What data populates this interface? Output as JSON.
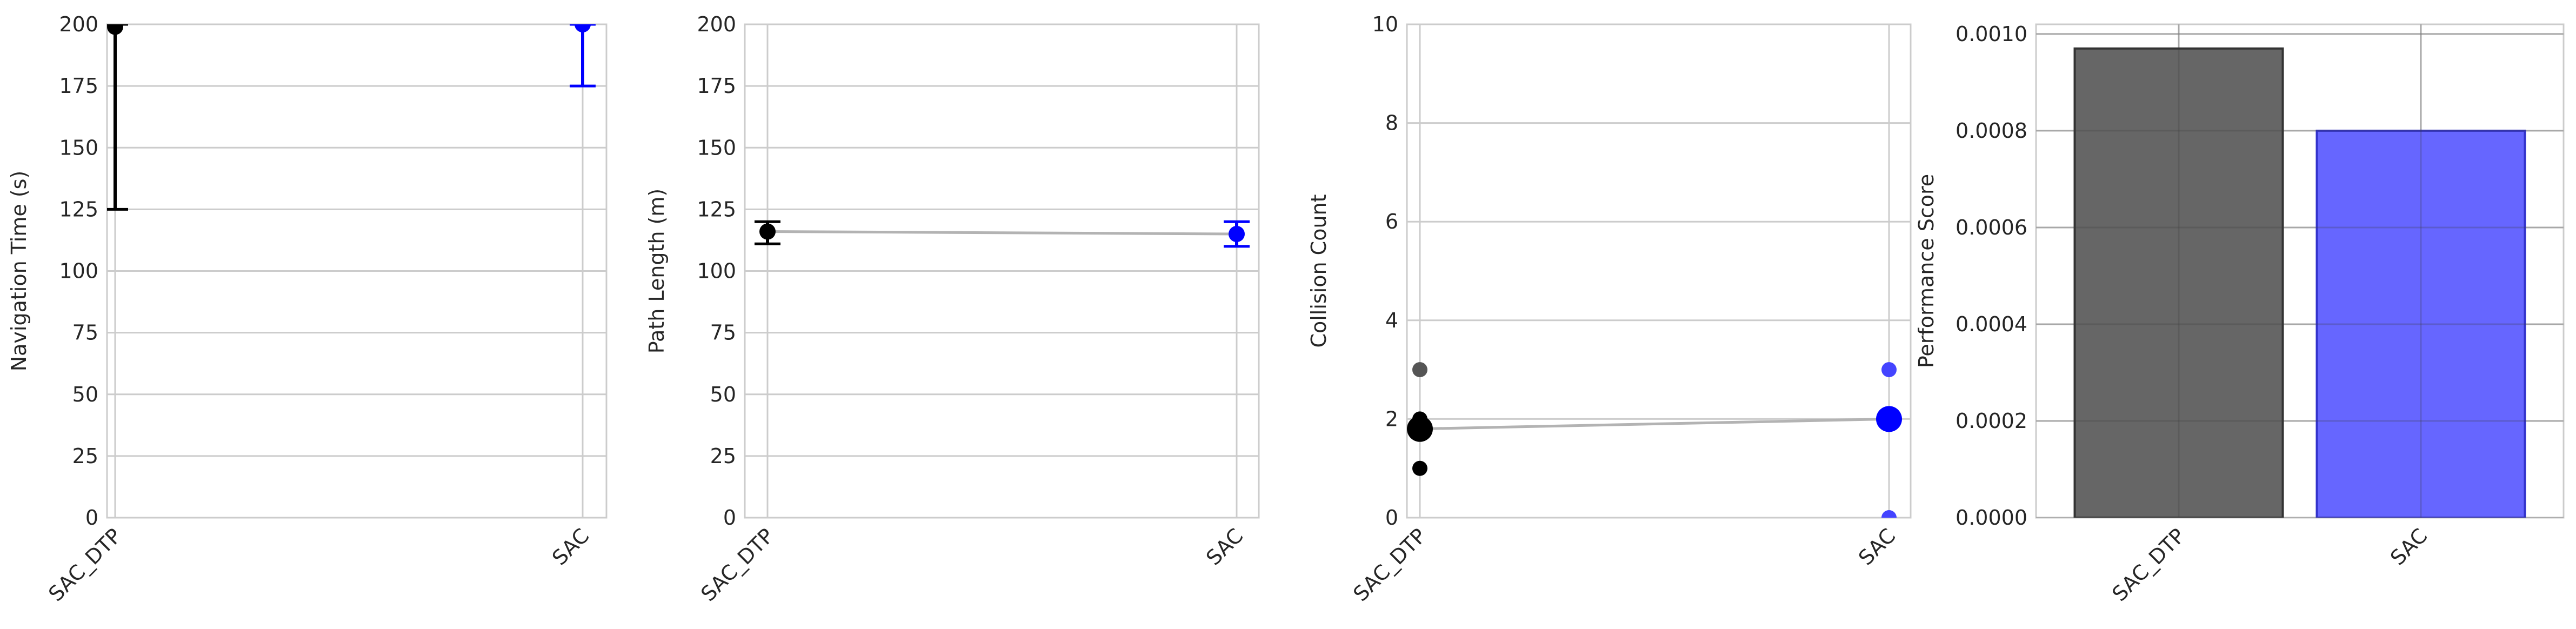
{
  "chart_data": [
    {
      "type": "errorbar",
      "ylabel": "Navigation Time (s)",
      "categories": [
        "SAC_DTP",
        "SAC"
      ],
      "ylim": [
        0,
        200
      ],
      "yticks": [
        0,
        25,
        50,
        75,
        100,
        125,
        150,
        175,
        200
      ],
      "grid": true,
      "series": [
        {
          "category": "SAC_DTP",
          "mean": 199,
          "err_low": 125,
          "err_high": 200,
          "color": "#000000"
        },
        {
          "category": "SAC",
          "mean": 200,
          "err_low": 175,
          "err_high": 200,
          "color": "#0000ff"
        }
      ],
      "connector": false
    },
    {
      "type": "errorbar",
      "ylabel": "Path Length (m)",
      "categories": [
        "SAC_DTP",
        "SAC"
      ],
      "ylim": [
        0,
        200
      ],
      "yticks": [
        0,
        25,
        50,
        75,
        100,
        125,
        150,
        175,
        200
      ],
      "grid": true,
      "series": [
        {
          "category": "SAC_DTP",
          "mean": 116,
          "err_low": 111,
          "err_high": 120,
          "color": "#000000"
        },
        {
          "category": "SAC",
          "mean": 115,
          "err_low": 110,
          "err_high": 120,
          "color": "#0000ff"
        }
      ],
      "connector": true,
      "connector_color": "#b3b3b3"
    },
    {
      "type": "scatter",
      "ylabel": "Collision Count",
      "categories": [
        "SAC_DTP",
        "SAC"
      ],
      "ylim": [
        0,
        10
      ],
      "yticks": [
        0,
        2,
        4,
        6,
        8,
        10
      ],
      "grid": true,
      "points": [
        {
          "category": "SAC_DTP",
          "y": 3,
          "color": "#555555"
        },
        {
          "category": "SAC_DTP",
          "y": 2,
          "color": "#000000"
        },
        {
          "category": "SAC_DTP",
          "y": 1,
          "color": "#000000"
        },
        {
          "category": "SAC",
          "y": 3,
          "color": "#4444ff"
        },
        {
          "category": "SAC",
          "y": 0,
          "color": "#4444ff"
        }
      ],
      "means": [
        {
          "category": "SAC_DTP",
          "y": 1.8,
          "color": "#000000"
        },
        {
          "category": "SAC",
          "y": 2.0,
          "color": "#0000ff"
        }
      ],
      "connector": true,
      "connector_color": "#b3b3b3"
    },
    {
      "type": "bar",
      "ylabel": "Performance Score",
      "categories": [
        "SAC_DTP",
        "SAC"
      ],
      "values": [
        0.00097,
        0.0008
      ],
      "colors": [
        "#666666",
        "#6666ff"
      ],
      "edge_colors": [
        "#333333",
        "#3333cc"
      ],
      "ylim": [
        0,
        0.00102
      ],
      "yticks": [
        0.0,
        0.0002,
        0.0004,
        0.0006,
        0.0008,
        0.001
      ],
      "ytick_labels": [
        "0.0000",
        "0.0002",
        "0.0004",
        "0.0006",
        "0.0008",
        "0.0010"
      ],
      "grid": true
    }
  ]
}
